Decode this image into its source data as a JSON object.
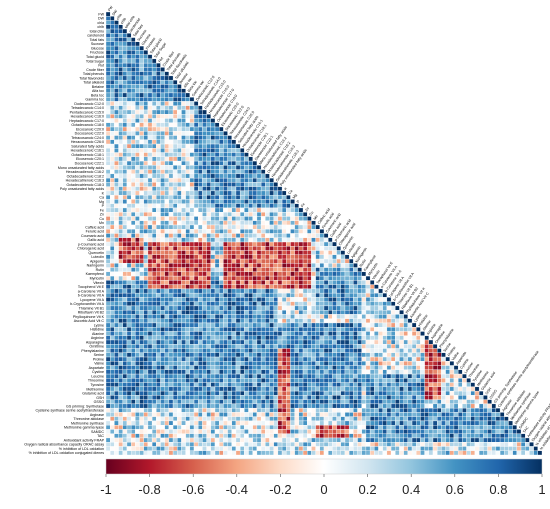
{
  "chart_data": {
    "type": "heatmap",
    "subtype": "lower-triangular correlation matrix",
    "title": "",
    "xlabel": "",
    "ylabel": "",
    "variables": [
      "FW",
      "DW",
      "chla",
      "chlb",
      "total chlo",
      "carotenoid",
      "Total fats",
      "Sucrose",
      "Glucose",
      "Fructose",
      "Total glucid",
      "Total Sugar",
      "Rut",
      "Crude fiber",
      "Total phenols",
      "Total flavonoids",
      "Total alkaloid",
      "Betaine",
      "Alfa toc",
      "Beta toc",
      "Gamma toc",
      "Dodecanoic C12:0",
      "Tetradecanoic C14:0",
      "Pentadecanoic C15:0",
      "Hexadecanoic C16:0",
      "Heptadecanoic C17:0",
      "Octadecanoic C18:0",
      "Eicosanoic C20:0",
      "Docosanoic C22:0",
      "Tetracosanoic C24:0",
      "Hexacosanoic C26:0",
      "Saturated fatty acids",
      "Hexadecenoic C16:1",
      "Octadecenoic C18:1",
      "Eicosenoic C20:1",
      "Docosenoic C22:1",
      "Mono unsaturated fatty acids",
      "Hexadecadienoic C16:2",
      "Octadecadienoic C18:2",
      "Hexadecatrienoic C16:3",
      "Octadecatrienoic C18:3",
      "Poly unsaturated fatty acids",
      "K",
      "Ca",
      "Mg",
      "P",
      "Fe",
      "Zn",
      "Cu",
      "Mn",
      "Caffeic acid",
      "Ferulic acid",
      "Coumaric acid",
      "Gallic acid",
      "p-Coumaric acid",
      "Chlorogenic acid",
      "Quercetin",
      "Luteolin",
      "Apigenin",
      "Naringenin",
      "Rutin",
      "Kaempferol",
      "Myricetin",
      "Vitexin",
      "Tocopherol Vit E",
      "a-Carotene Vit A",
      "b-Carotene Vit A",
      "Lycopene Vit A",
      "b-Cryptoxanthin Vit A",
      "Thiamine Vit B1",
      "Riboflavin Vit B2",
      "Phylloquinone Vit K",
      "Ascorbic Acid Vit C",
      "Lysine",
      "Histidine",
      "Alanine",
      "Arginine",
      "Asparagine",
      "Ornithine",
      "Phenylalanine",
      "Serine",
      "Proline",
      "Valine",
      "Aspartate",
      "Cystine",
      "Leucine",
      "Threonine",
      "Tyrosine",
      "Methionine",
      "Glutamic acid",
      "GSH",
      "GSSG",
      "GS priming: Synthetase",
      "Cysteine synthase serine acetyltransferase",
      "Arginase",
      "Threonine aldolase",
      "Methionine synthase",
      "Methionine gamma lyase",
      "SAMDC",
      "TAC",
      "Antioxidant activity FRAP",
      "Oxygen radical absorbance capacity ORAC assay",
      "% inhibition of LDL oxidation",
      "% inhibition of LDL oxidation conjugated dienes"
    ],
    "diagonal_value": 1,
    "color_scale": {
      "min": -1,
      "max": 1,
      "ticks": [
        -1,
        -0.8,
        -0.6,
        -0.4,
        -0.2,
        0,
        0.2,
        0.4,
        0.6,
        0.8,
        1
      ],
      "tick_labels": [
        "-1",
        "-0.8",
        "-0.6",
        "-0.4",
        "-0.2",
        "0",
        "0.2",
        "0.4",
        "0.6",
        "0.8",
        "1"
      ],
      "low_color": "#67001f",
      "mid_color": "#ffffff",
      "high_color": "#053061",
      "position": "bottom"
    },
    "grid": true,
    "colors": {
      "cell_border": "#ffffff",
      "background": "#ffffff",
      "text": "#000000"
    },
    "patterns": {
      "strong_positive_blocks": [
        [
          0,
          12,
          0,
          12
        ],
        [
          13,
          20,
          0,
          20
        ],
        [
          21,
          45,
          21,
          45
        ],
        [
          63,
          72,
          0,
          40
        ],
        [
          73,
          92,
          0,
          60
        ],
        [
          93,
          100,
          73,
          100
        ],
        [
          60,
          70,
          50,
          60
        ],
        [
          85,
          100,
          62,
          75
        ]
      ],
      "strong_negative_blocks": [
        [
          54,
          64,
          10,
          24
        ],
        [
          54,
          64,
          28,
          48
        ],
        [
          53,
          58,
          3,
          8
        ],
        [
          97,
          99,
          50,
          57
        ],
        [
          79,
          98,
          41,
          43
        ],
        [
          77,
          90,
          76,
          79
        ]
      ]
    }
  }
}
